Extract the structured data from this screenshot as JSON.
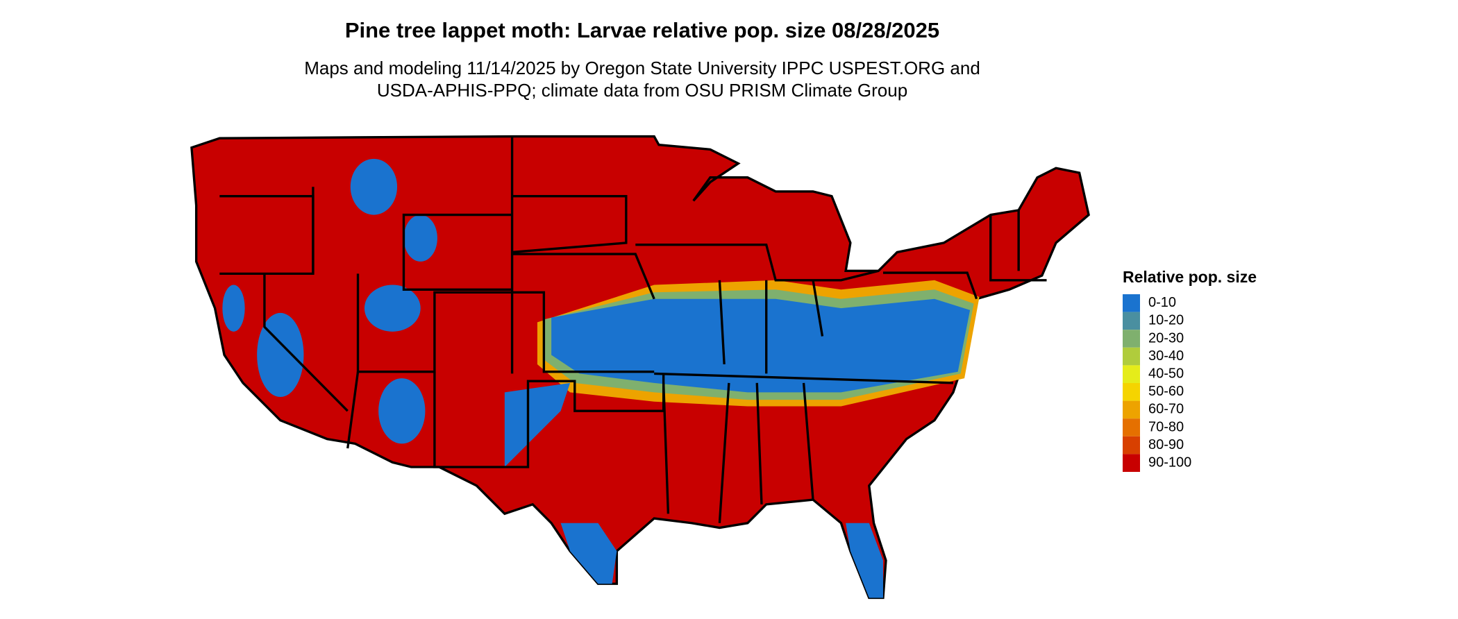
{
  "header": {
    "title": "Pine tree lappet moth: Larvae relative pop. size 08/28/2025",
    "subtitle": [
      "Maps and modeling 11/14/2025 by Oregon State University IPPC USPEST.ORG and",
      "USDA-APHIS-PPQ; climate data from OSU PRISM Climate Group"
    ]
  },
  "legend": {
    "title": "Relative pop. size",
    "items": [
      {
        "label": "0-10",
        "color": "#1a73cf"
      },
      {
        "label": "10-20",
        "color": "#4a8fa0"
      },
      {
        "label": "20-30",
        "color": "#7fb06e"
      },
      {
        "label": "30-40",
        "color": "#b0cc3c"
      },
      {
        "label": "40-50",
        "color": "#e5ec1a"
      },
      {
        "label": "50-60",
        "color": "#f5d400"
      },
      {
        "label": "60-70",
        "color": "#eda300"
      },
      {
        "label": "70-80",
        "color": "#e57000"
      },
      {
        "label": "80-90",
        "color": "#d84000"
      },
      {
        "label": "90-100",
        "color": "#c80000"
      }
    ]
  }
}
